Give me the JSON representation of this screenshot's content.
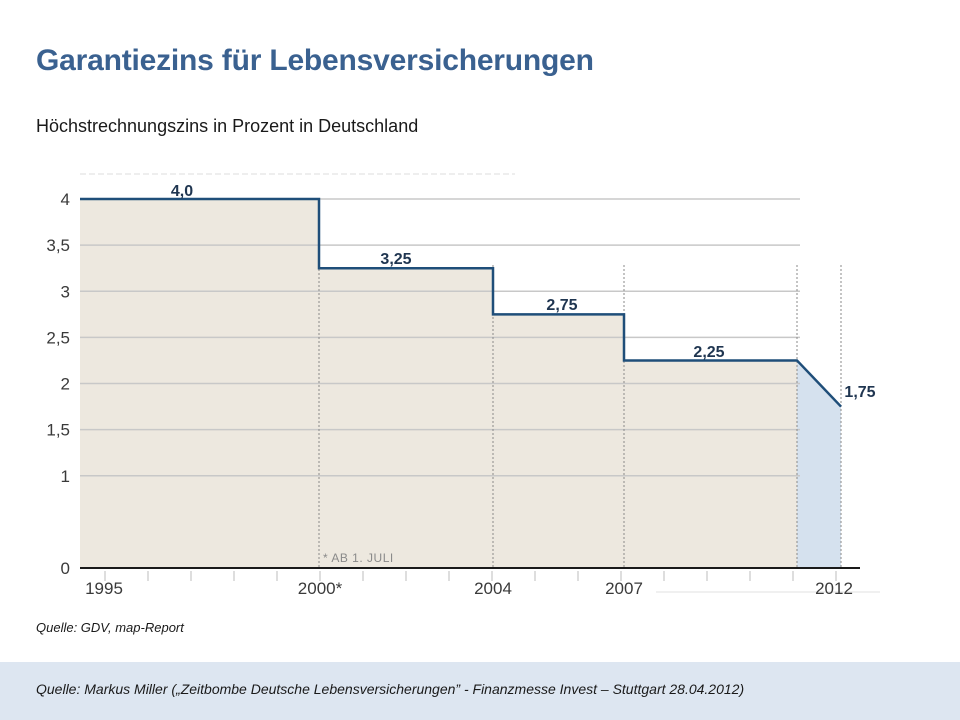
{
  "slide": {
    "title": "Garantiezins für Lebensversicherungen",
    "subtitle": "Höchstrechnungszins in Prozent in Deutschland",
    "source_note": "Quelle: GDV, map-Report",
    "footer": "Quelle: Markus Miller („Zeitbombe Deutsche Lebensversicherungen” - Finanzmesse Invest – Stuttgart 28.04.2012)"
  },
  "chart_data": {
    "type": "area",
    "step": true,
    "title": "",
    "xlabel": "",
    "ylabel": "",
    "ylim": [
      0,
      4
    ],
    "y_ticks": [
      0,
      1,
      1.5,
      2,
      2.5,
      3,
      3.5,
      4
    ],
    "y_tick_labels": [
      "0",
      "1",
      "1,5",
      "2",
      "2,5",
      "3",
      "3,5",
      "4"
    ],
    "x_tick_labels": [
      "1995",
      "2000*",
      "2004",
      "2007",
      "2012"
    ],
    "segments": [
      {
        "from": "1995",
        "to": "2000*",
        "value": 4.0,
        "label": "4,0"
      },
      {
        "from": "2000*",
        "to": "2004",
        "value": 3.25,
        "label": "3,25"
      },
      {
        "from": "2004",
        "to": "2007",
        "value": 2.75,
        "label": "2,75"
      },
      {
        "from": "2007",
        "to": "2011",
        "value": 2.25,
        "label": "2,25"
      },
      {
        "from": "2011",
        "to": "2012",
        "value": 1.75,
        "label": "1,75",
        "forecast": true
      }
    ],
    "annotation": "* AB 1. JULI",
    "grid": true,
    "colors": {
      "line": "#1f4e79",
      "fill": "#ede8df",
      "forecast_fill": "#d5e1ee",
      "grid": "#c8c8c8",
      "axis": "#1a1a1a"
    }
  }
}
